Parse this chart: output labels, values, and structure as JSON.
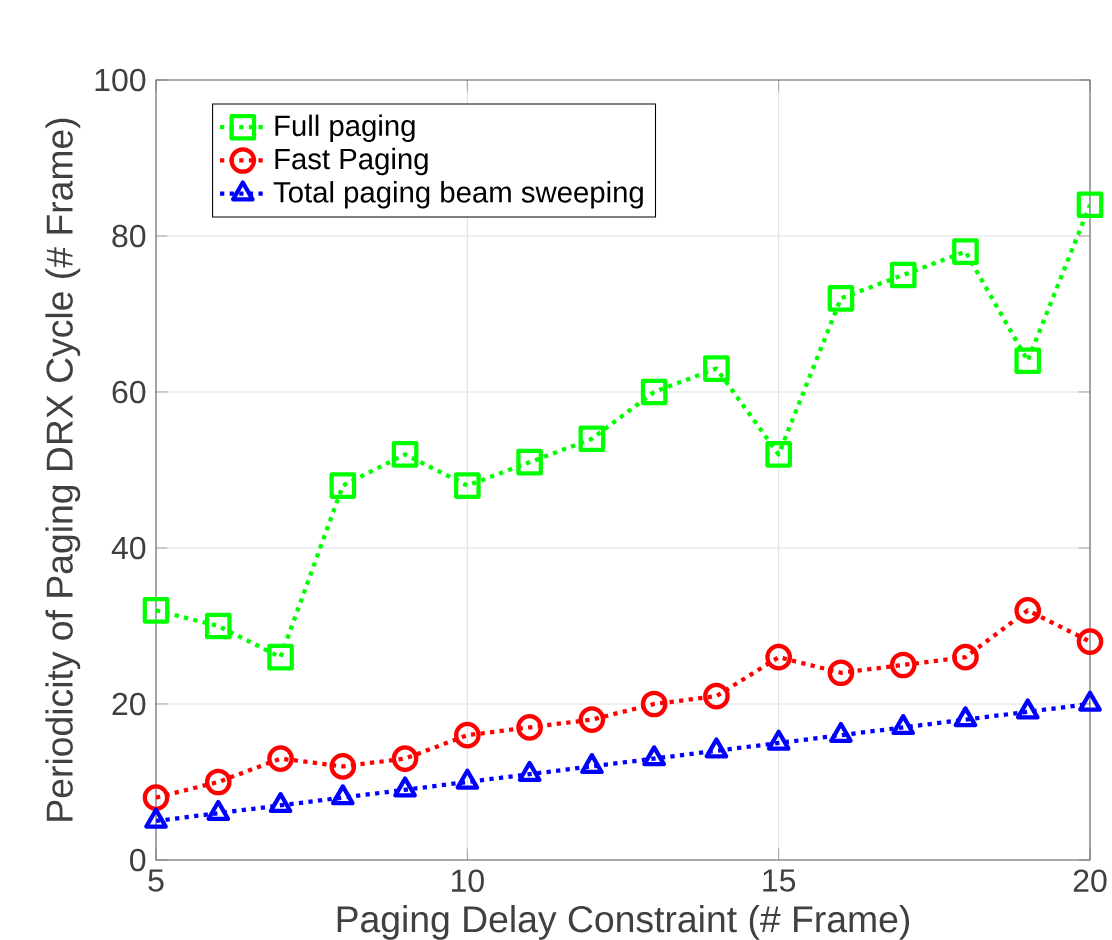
{
  "chart_data": {
    "type": "line",
    "xlabel": "Paging Delay Constraint (# Frame)",
    "ylabel": "Periodicity of Paging DRX Cycle (# Frame)",
    "x": [
      5,
      6,
      7,
      8,
      9,
      10,
      11,
      12,
      13,
      14,
      15,
      16,
      17,
      18,
      19,
      20
    ],
    "series": [
      {
        "name": "Full paging",
        "color": "#00ff00",
        "marker": "square",
        "values": [
          32,
          30,
          26,
          48,
          52,
          48,
          51,
          54,
          60,
          63,
          52,
          72,
          75,
          78,
          64,
          84
        ]
      },
      {
        "name": "Fast Paging",
        "color": "#ff0000",
        "marker": "circle",
        "values": [
          8,
          10,
          13,
          12,
          13,
          16,
          17,
          18,
          20,
          21,
          26,
          24,
          25,
          26,
          32,
          28
        ]
      },
      {
        "name": "Total paging beam sweeping",
        "color": "#0000ff",
        "marker": "triangle",
        "values": [
          5,
          6,
          7,
          8,
          9,
          10,
          11,
          12,
          13,
          14,
          15,
          16,
          17,
          18,
          19,
          20
        ]
      }
    ],
    "line_style": "dotted",
    "grid": true,
    "legend": "top left",
    "xlim": [
      5,
      20
    ],
    "xticks": [
      5,
      10,
      15,
      20
    ],
    "ylim": [
      0,
      100
    ],
    "yticks": [
      0,
      20,
      40,
      60,
      80,
      100
    ]
  }
}
